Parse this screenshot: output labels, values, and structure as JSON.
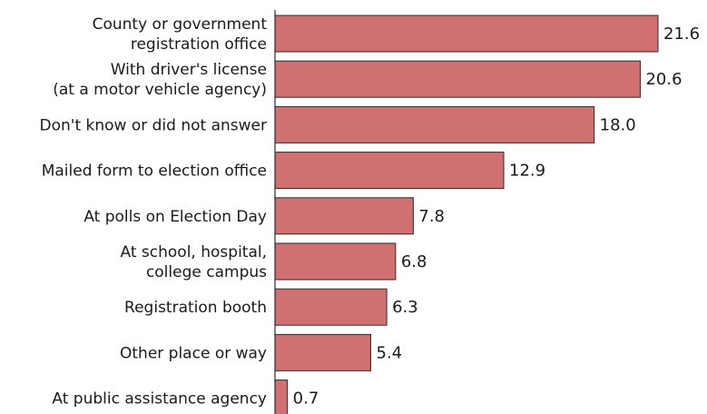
{
  "chart_data": {
    "type": "bar",
    "orientation": "horizontal",
    "categories": [
      [
        "County or government",
        "registration office"
      ],
      [
        "With driver's license",
        "(at a motor vehicle agency)"
      ],
      [
        "Don't know or did not answer"
      ],
      [
        "Mailed form to election office"
      ],
      [
        "At polls on Election Day"
      ],
      [
        "At school, hospital,",
        "college campus"
      ],
      [
        "Registration booth"
      ],
      [
        "Other place or way"
      ],
      [
        "At public assistance agency"
      ]
    ],
    "values": [
      21.6,
      20.6,
      18.0,
      12.9,
      7.8,
      6.8,
      6.3,
      5.4,
      0.7
    ],
    "value_labels": [
      "21.6",
      "20.6",
      "18.0",
      "12.9",
      "7.8",
      "6.8",
      "6.3",
      "5.4",
      "0.7"
    ],
    "title": "",
    "xlabel": "",
    "ylabel": "",
    "xlim": [
      0,
      22
    ],
    "grid": false,
    "legend": "none",
    "bar_color": "#d07070",
    "bar_edge_color": "#2b2b2b"
  }
}
